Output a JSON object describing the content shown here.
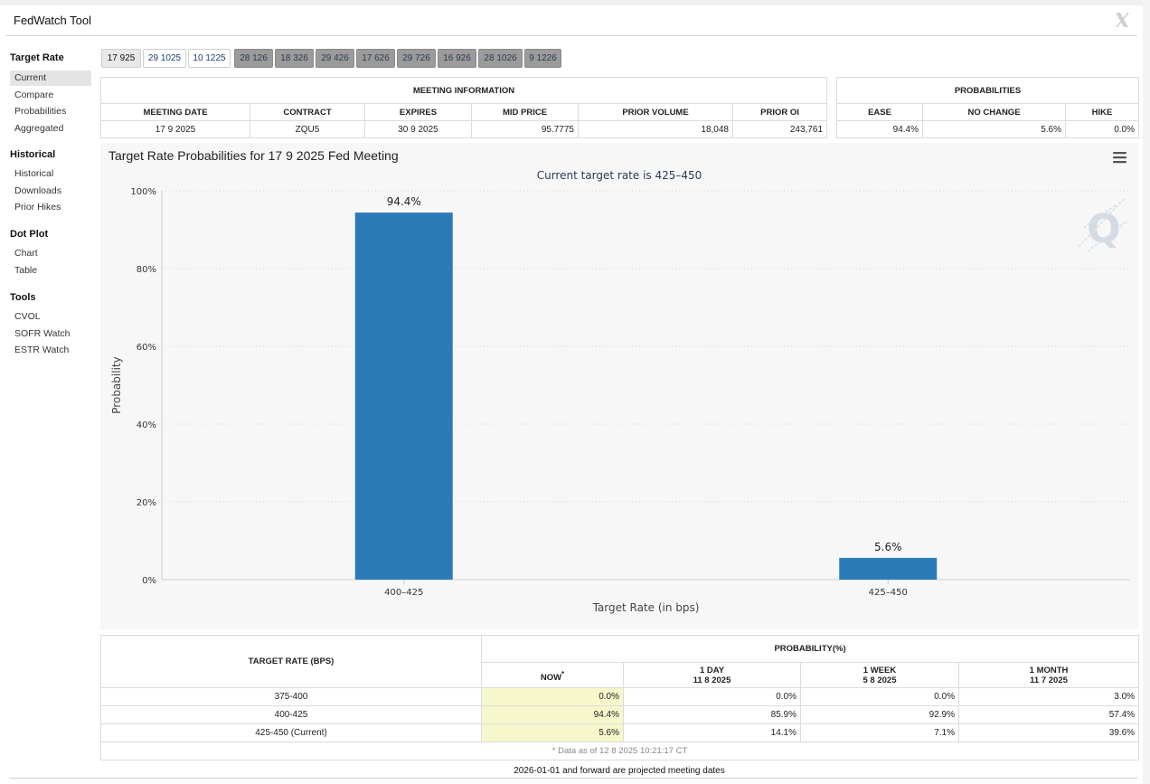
{
  "app": {
    "title": "FedWatch Tool"
  },
  "sidebar": {
    "sections": [
      {
        "heading": "Target Rate",
        "items": [
          "Current",
          "Compare",
          "Probabilities",
          "Aggregated"
        ]
      },
      {
        "heading": "Historical",
        "items": [
          "Historical",
          "Downloads",
          "Prior Hikes"
        ]
      },
      {
        "heading": "Dot Plot",
        "items": [
          "Chart",
          "Table"
        ]
      },
      {
        "heading": "Tools",
        "items": [
          "CVOL",
          "SOFR Watch",
          "ESTR Watch"
        ]
      }
    ],
    "active_item": "Current"
  },
  "meeting_tabs": [
    "17 925",
    "29 1025",
    "10 1225",
    "28 126",
    "18 326",
    "29 426",
    "17 626",
    "29 726",
    "16 926",
    "28 1026",
    "9 1226"
  ],
  "selected_tab": "17 925",
  "meeting_info": {
    "title": "MEETING INFORMATION",
    "headers": [
      "MEETING DATE",
      "CONTRACT",
      "EXPIRES",
      "MID PRICE",
      "PRIOR VOLUME",
      "PRIOR OI"
    ],
    "values": [
      "17 9 2025",
      "ZQU5",
      "30 9 2025",
      "95.7775",
      "18,048",
      "243,761"
    ]
  },
  "probabilities_box": {
    "title": "PROBABILITIES",
    "headers": [
      "EASE",
      "NO CHANGE",
      "HIKE"
    ],
    "values": [
      "94.4%",
      "5.6%",
      "0.0%"
    ]
  },
  "chart_panel": {
    "menu_icon": "hamburger-icon",
    "watermark": "Q"
  },
  "chart_data": {
    "type": "bar",
    "title": "Target Rate Probabilities for 17 9 2025 Fed Meeting",
    "subtitle": "Current target rate is 425–450",
    "xlabel": "Target Rate (in bps)",
    "ylabel": "Probability",
    "categories": [
      "400–425",
      "425–450"
    ],
    "values": [
      94.4,
      5.6
    ],
    "data_labels": [
      "94.4%",
      "5.6%"
    ],
    "ylim": [
      0,
      100
    ],
    "yticks": [
      "0%",
      "20%",
      "40%",
      "60%",
      "80%",
      "100%"
    ],
    "grid": true,
    "bar_color": "#2b7bb9"
  },
  "prob_table": {
    "target_header": "TARGET RATE (BPS)",
    "group_header": "PROBABILITY(%)",
    "columns": [
      {
        "label": "NOW",
        "mark": "*",
        "date": ""
      },
      {
        "label": "1 DAY",
        "mark": "",
        "date": "11 8 2025"
      },
      {
        "label": "1 WEEK",
        "mark": "",
        "date": "5 8 2025"
      },
      {
        "label": "1 MONTH",
        "mark": "",
        "date": "11 7 2025"
      }
    ],
    "rows": [
      {
        "rate": "375-400",
        "values": [
          "0.0%",
          "0.0%",
          "0.0%",
          "3.0%"
        ]
      },
      {
        "rate": "400-425",
        "values": [
          "94.4%",
          "85.9%",
          "92.9%",
          "57.4%"
        ]
      },
      {
        "rate": "425-450 (Current)",
        "values": [
          "5.6%",
          "14.1%",
          "7.1%",
          "39.6%"
        ]
      }
    ],
    "note": "* Data as of 12 8 2025 10:21:17 CT"
  },
  "footer_note": "2026-01-01 and forward are projected meeting dates",
  "colors": {
    "accent": "#2b7bb9",
    "highlight": "#f7f7cc",
    "tab_dark": "#9b9b9b"
  }
}
